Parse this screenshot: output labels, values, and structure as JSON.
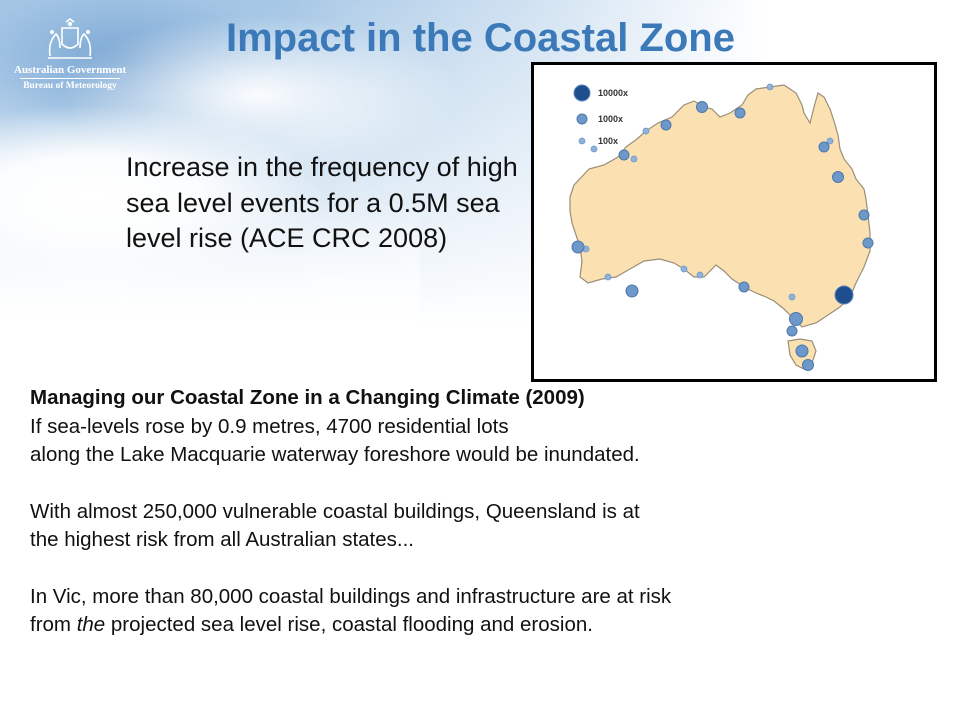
{
  "logo": {
    "line1": "Australian Government",
    "line2": "Bureau of Meteorology"
  },
  "title": "Impact in the Coastal Zone",
  "intro": "Increase in the frequency of high sea level events for a 0.5M sea level rise (ACE CRC 2008)",
  "map": {
    "legend": [
      {
        "label": "10000x"
      },
      {
        "label": "1000x"
      },
      {
        "label": "100x"
      }
    ],
    "colors": {
      "land": "#fbe1b2",
      "coast": "#9a8e78",
      "marker_small": "#8fb2d8",
      "marker_medium": "#6d98c9",
      "marker_large": "#1f4e8f"
    }
  },
  "content": {
    "heading": "Managing our Coastal Zone in a Changing Climate (2009)",
    "para1_line1": "If sea-levels rose by 0.9 metres, 4700 residential lots",
    "para1_line2": "along the Lake Macquarie waterway foreshore would be inundated.",
    "para2_line1": "With almost 250,000 vulnerable coastal buildings, Queensland is at",
    "para2_line2": "the highest risk from all Australian states...",
    "para3_line1": "In Vic, more than 80,000 coastal buildings and infrastructure are at risk",
    "para3_line2_pre": "from ",
    "para3_line2_em": "the",
    "para3_line2_post": " projected sea level rise, coastal flooding and erosion."
  }
}
